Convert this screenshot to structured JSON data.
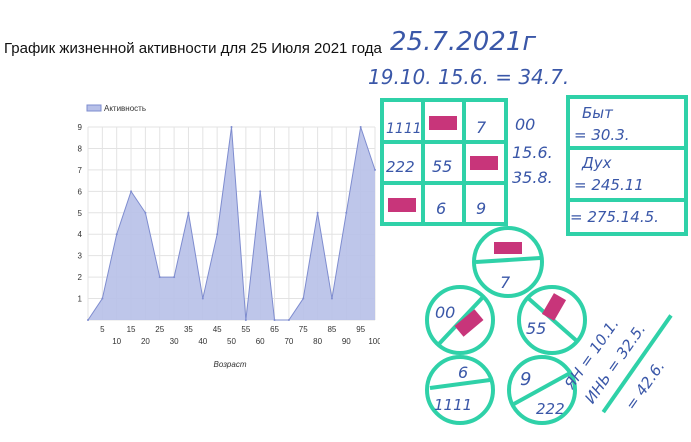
{
  "page": {
    "title": "График жизненной активности для 25 Июля 2021 года"
  },
  "chart_data": {
    "type": "area",
    "series": [
      {
        "name": "Активность",
        "x": [
          0,
          5,
          10,
          15,
          20,
          25,
          30,
          35,
          40,
          45,
          50,
          55,
          60,
          65,
          70,
          75,
          80,
          85,
          90,
          95,
          100
        ],
        "values": [
          0,
          1,
          4,
          6,
          5,
          2,
          2,
          5,
          1,
          4,
          9,
          0,
          6,
          0,
          0,
          1,
          5,
          1,
          5,
          9,
          7
        ]
      }
    ],
    "xlabel": "Возраст",
    "ylabel": "",
    "xlim": [
      0,
      100
    ],
    "ylim": [
      0,
      9
    ],
    "x_ticks_row1": [
      "5",
      "15",
      "25",
      "35",
      "45",
      "55",
      "65",
      "75",
      "85",
      "95"
    ],
    "x_ticks_row2": [
      "10",
      "20",
      "30",
      "40",
      "50",
      "60",
      "70",
      "80",
      "90",
      "100"
    ],
    "y_ticks": [
      "1",
      "2",
      "3",
      "4",
      "5",
      "6",
      "7",
      "8",
      "9"
    ],
    "grid": true,
    "legend": "top-left",
    "colors": {
      "fill": "#b7c0e8",
      "line": "#7e8ccf",
      "grid": "#e3e3e3"
    }
  },
  "handwriting": {
    "date": "25.7.2021г",
    "calc": "19.10. 15.6. = 34.7.",
    "grid_cells": [
      "1111",
      "",
      "7",
      "222",
      "55",
      "",
      "",
      "6",
      "9"
    ],
    "side_numbers": [
      "00",
      "15.6.",
      "35.8."
    ],
    "body_label": "Быт",
    "body_value": "= 30.3.",
    "spirit_label": "Дух",
    "spirit_value": "= 245.11",
    "total": "= 275.14.5.",
    "circles": [
      "7",
      "00",
      "55",
      "6",
      "1111",
      "9",
      "222"
    ],
    "yan": "ЯН = 10.1.",
    "in": "ИНЬ = 32.5.",
    "yin_yang_total": "= 42.6.",
    "colors": {
      "ink": "#3a57a8",
      "green": "#2fd1a8",
      "pink": "#c8357a"
    }
  }
}
